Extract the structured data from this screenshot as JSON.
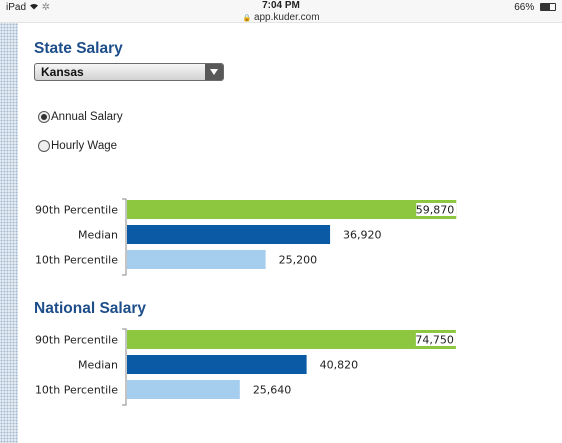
{
  "status": {
    "device": "iPad",
    "time": "7:04 PM",
    "url": "app.kuder.com",
    "battery": "66%",
    "battery_fraction": 0.66
  },
  "state": {
    "title": "State Salary",
    "selected_state": "Kansas"
  },
  "pay_type": {
    "options": [
      "Annual Salary",
      "Hourly Wage"
    ],
    "selected": "Annual Salary"
  },
  "national": {
    "title": "National Salary"
  },
  "colors": {
    "heading": "#1d4e8a",
    "percentile90": "#8dc63f",
    "median": "#0b5aa6",
    "percentile10": "#a5cdee"
  },
  "chart_data": [
    {
      "type": "bar",
      "orientation": "horizontal",
      "categories": [
        "90th Percentile",
        "Median",
        "10th Percentile"
      ],
      "values": [
        59870,
        36920,
        25200
      ],
      "value_labels": [
        "59,870",
        "36,920",
        "25,200"
      ],
      "xlim": [
        0,
        60000
      ]
    },
    {
      "type": "bar",
      "orientation": "horizontal",
      "categories": [
        "90th Percentile",
        "Median",
        "10th Percentile"
      ],
      "values": [
        74750,
        40820,
        25640
      ],
      "value_labels": [
        "74,750",
        "40,820",
        "25,640"
      ],
      "xlim": [
        0,
        75000
      ]
    }
  ]
}
